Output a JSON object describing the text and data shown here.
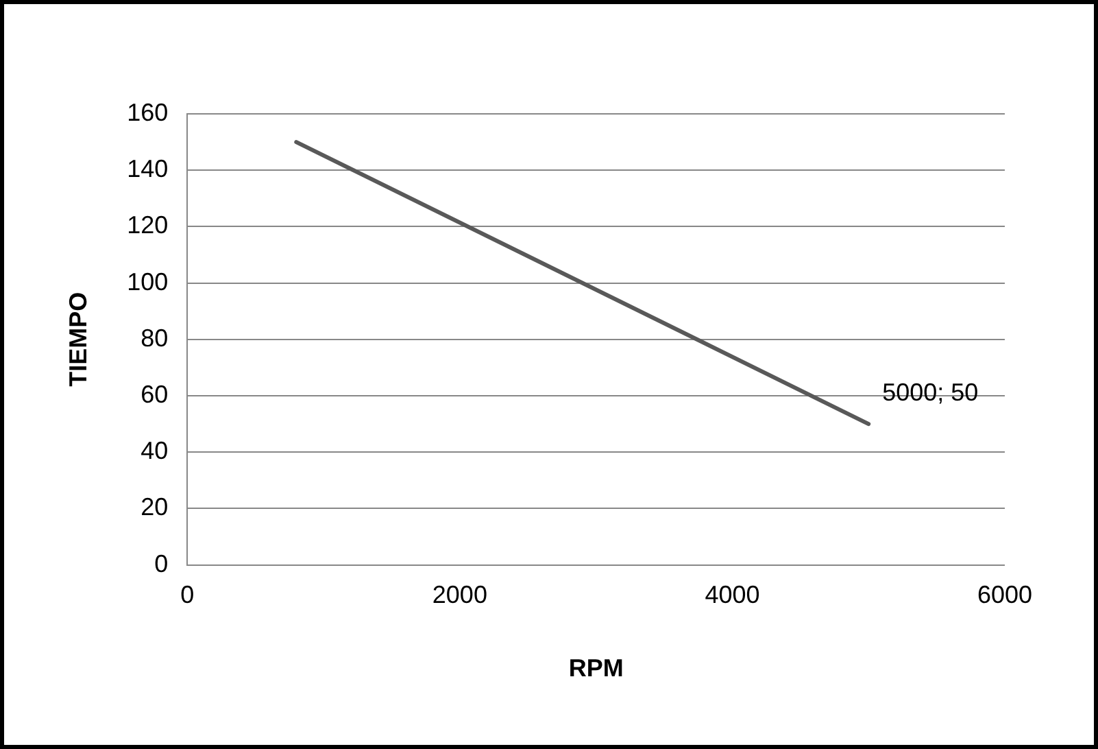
{
  "chart_data": {
    "type": "line",
    "xlabel": "RPM",
    "ylabel": "TIEMPO",
    "x": [
      800,
      5000
    ],
    "series": [
      {
        "color": "#595959",
        "values": [
          150,
          50
        ],
        "value_labels": [
          null,
          "5000; 50"
        ]
      }
    ],
    "xlim": [
      0,
      6000
    ],
    "xticks": [
      0,
      2000,
      4000,
      6000
    ],
    "ylim": [
      0,
      160
    ],
    "yticks": [
      0,
      20,
      40,
      60,
      80,
      100,
      120,
      140,
      160
    ],
    "grid": "y",
    "legend": false,
    "marker": "none",
    "line_style": "solid"
  }
}
